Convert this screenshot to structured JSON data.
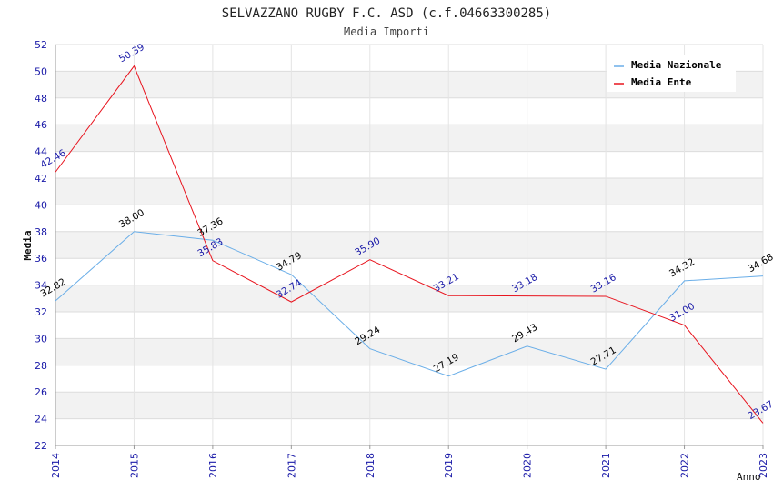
{
  "chart_data": {
    "type": "line",
    "title": "SELVAZZANO RUGBY F.C. ASD (c.f.04663300285)",
    "subtitle": "Media Importi",
    "xlabel": "Anno",
    "ylabel": "Media",
    "ylim": [
      22,
      52
    ],
    "ytick_step": 2,
    "categories": [
      "2014",
      "2015",
      "2016",
      "2017",
      "2018",
      "2019",
      "2020",
      "2021",
      "2022",
      "2023"
    ],
    "series": [
      {
        "name": "Media Nazionale",
        "color": "#6aaee8",
        "label_color": "#000000",
        "values": [
          32.82,
          38.0,
          37.36,
          34.79,
          29.24,
          27.19,
          29.43,
          27.71,
          34.32,
          34.68
        ],
        "labels": [
          "32.82",
          "38.00",
          "37.36",
          "34.79",
          "29.24",
          "27.19",
          "29.43",
          "27.71",
          "34.32",
          "34.68"
        ]
      },
      {
        "name": "Media Ente",
        "color": "#e8141e",
        "label_color": "#1a1aa8",
        "values": [
          42.46,
          50.39,
          35.83,
          32.74,
          35.9,
          33.21,
          33.18,
          33.16,
          31.0,
          23.67
        ],
        "labels": [
          "42.46",
          "50.39",
          "35.83",
          "32.74",
          "35.90",
          "33.21",
          "33.18",
          "33.16",
          "31.00",
          "23.67"
        ]
      }
    ],
    "grid": true,
    "legend_position": "top-right"
  }
}
